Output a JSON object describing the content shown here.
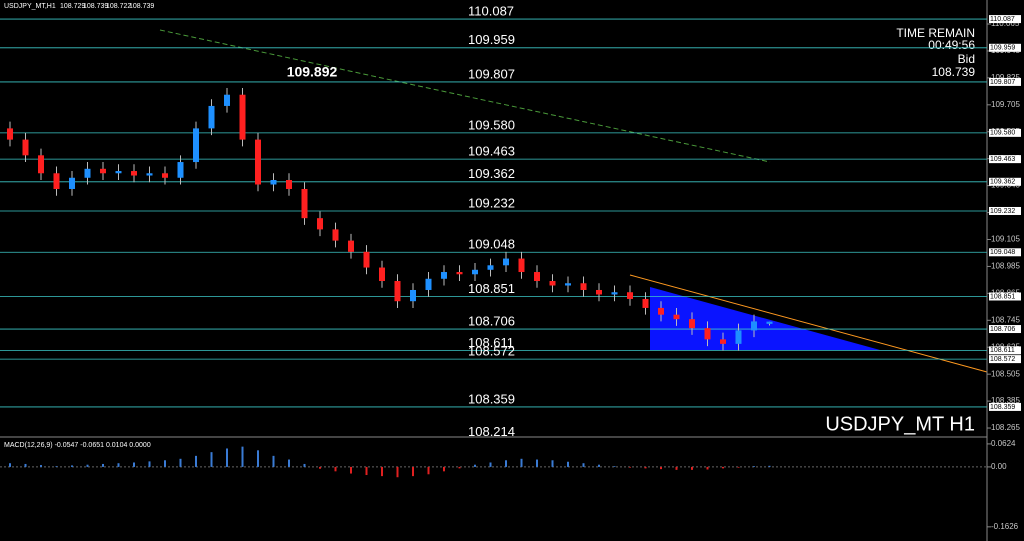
{
  "chart_data": [
    {
      "type": "candlestick",
      "title": "USDJPY_MT,H1",
      "watermark": "USDJPY_MT H1",
      "annotation": "109.892",
      "time_label": "TIME REMAIN",
      "time_value": "00:49:56",
      "bid_label": "Bid",
      "ylim": [
        108.225,
        110.172
      ],
      "yticks": [
        110.065,
        109.945,
        109.825,
        109.705,
        109.585,
        109.465,
        109.345,
        109.225,
        109.105,
        108.985,
        108.865,
        108.745,
        108.625,
        108.505,
        108.385,
        108.265
      ],
      "levels": [
        110.087,
        109.959,
        109.807,
        {
          "value": 109.58,
          "label": "109.580"
        },
        109.463,
        109.362,
        109.232,
        109.048,
        108.851,
        108.706,
        108.611,
        108.572,
        108.359,
        108.214
      ],
      "up_color": "#1e90ff",
      "down_color": "#ff2020",
      "level_color": "#3cc8c8",
      "open": [
        109.6,
        109.55,
        109.48,
        109.4,
        109.33,
        109.38,
        109.42,
        109.4,
        109.41,
        109.39,
        109.4,
        109.38,
        109.45,
        109.6,
        109.7,
        109.75,
        109.55,
        109.35,
        109.37,
        109.33,
        109.2,
        109.15,
        109.1,
        109.05,
        108.98,
        108.92,
        108.83,
        108.88,
        108.93,
        108.96,
        108.95,
        108.97,
        108.99,
        109.02,
        108.96,
        108.92,
        108.9,
        108.91,
        108.88,
        108.86,
        108.87,
        108.84,
        108.8,
        108.77,
        108.75,
        108.71,
        108.66,
        108.64,
        108.7,
        108.729
      ],
      "high": [
        109.63,
        109.58,
        109.51,
        109.43,
        109.41,
        109.45,
        109.45,
        109.44,
        109.44,
        109.43,
        109.43,
        109.48,
        109.63,
        109.73,
        109.78,
        109.78,
        109.58,
        109.4,
        109.4,
        109.36,
        109.23,
        109.18,
        109.13,
        109.08,
        109.01,
        108.95,
        108.91,
        108.96,
        108.99,
        108.99,
        109.0,
        109.02,
        109.05,
        109.05,
        108.99,
        108.95,
        108.94,
        108.94,
        108.91,
        108.9,
        108.9,
        108.87,
        108.83,
        108.8,
        108.78,
        108.74,
        108.69,
        108.73,
        108.77,
        108.739
      ],
      "low": [
        109.52,
        109.45,
        109.37,
        109.3,
        109.3,
        109.35,
        109.37,
        109.37,
        109.36,
        109.36,
        109.35,
        109.35,
        109.42,
        109.57,
        109.67,
        109.52,
        109.32,
        109.32,
        109.3,
        109.17,
        109.12,
        109.07,
        109.02,
        108.95,
        108.89,
        108.8,
        108.8,
        108.85,
        108.9,
        108.92,
        108.92,
        108.94,
        108.96,
        108.93,
        108.89,
        108.87,
        108.87,
        108.85,
        108.83,
        108.83,
        108.81,
        108.77,
        108.74,
        108.72,
        108.68,
        108.63,
        108.61,
        108.61,
        108.67,
        108.722
      ],
      "close": [
        109.55,
        109.48,
        109.4,
        109.33,
        109.38,
        109.42,
        109.4,
        109.41,
        109.39,
        109.4,
        109.38,
        109.45,
        109.6,
        109.7,
        109.75,
        109.55,
        109.35,
        109.37,
        109.33,
        109.2,
        109.15,
        109.1,
        109.05,
        108.98,
        108.92,
        108.83,
        108.88,
        108.93,
        108.96,
        108.95,
        108.97,
        108.99,
        109.02,
        108.96,
        108.92,
        108.9,
        108.91,
        108.88,
        108.86,
        108.87,
        108.84,
        108.8,
        108.77,
        108.75,
        108.71,
        108.66,
        108.64,
        108.7,
        108.74,
        108.739
      ]
    },
    {
      "type": "bar",
      "title": "MACD(12,26,9) -0.0547 -0.0651 0.0104 0.0000",
      "ylim": [
        -0.201,
        0.073
      ],
      "yticks": [
        0.0624,
        {
          "value": 0,
          "label": "0.00"
        },
        -0.1626
      ],
      "up_color": "#3a7bd5",
      "down_color": "#e02020",
      "values": [
        0.01,
        0.008,
        0.005,
        0.002,
        0.004,
        0.006,
        0.008,
        0.01,
        0.012,
        0.015,
        0.018,
        0.022,
        0.03,
        0.04,
        0.05,
        0.055,
        0.045,
        0.03,
        0.02,
        0.008,
        -0.005,
        -0.012,
        -0.018,
        -0.022,
        -0.025,
        -0.028,
        -0.025,
        -0.02,
        -0.012,
        -0.004,
        0.006,
        0.012,
        0.018,
        0.022,
        0.02,
        0.018,
        0.014,
        0.01,
        0.006,
        0.002,
        -0.002,
        -0.004,
        -0.006,
        -0.008,
        -0.008,
        -0.007,
        -0.004,
        -0.002,
        0.002,
        0.003
      ]
    }
  ]
}
